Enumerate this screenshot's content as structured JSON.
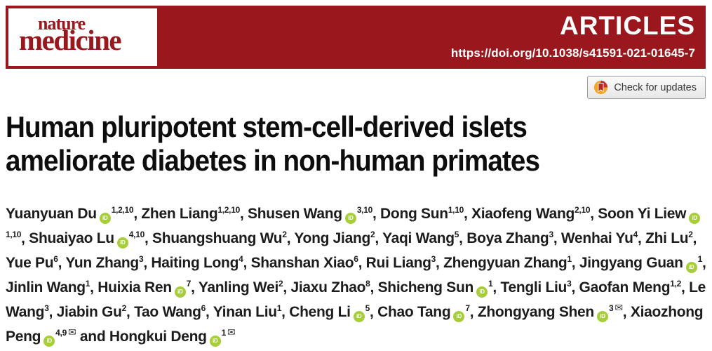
{
  "masthead": {
    "journal_name_line1": "nature",
    "journal_name_line2": "medicine",
    "section_label": "ARTICLES",
    "doi_url": "https://doi.org/10.1038/s41591-021-01645-7"
  },
  "update_badge": {
    "label": "Check for updates"
  },
  "article": {
    "title_line1": "Human pluripotent stem-cell-derived islets",
    "title_line2": "ameliorate diabetes in non-human primates",
    "last_author_conjunction": "and",
    "orcid_icon_text": "iD",
    "email_icon_glyph": "✉",
    "authors": [
      {
        "name": "Yuanyuan Du",
        "orcid": true,
        "sup": "1,2,10",
        "email": false
      },
      {
        "name": "Zhen Liang",
        "orcid": false,
        "sup": "1,2,10",
        "email": false
      },
      {
        "name": "Shusen Wang",
        "orcid": true,
        "sup": "3,10",
        "email": false
      },
      {
        "name": "Dong Sun",
        "orcid": false,
        "sup": "1,10",
        "email": false
      },
      {
        "name": "Xiaofeng Wang",
        "orcid": false,
        "sup": "2,10",
        "email": false
      },
      {
        "name": "Soon Yi Liew",
        "orcid": true,
        "sup": "1,10",
        "email": false
      },
      {
        "name": "Shuaiyao Lu",
        "orcid": true,
        "sup": "4,10",
        "email": false
      },
      {
        "name": "Shuangshuang Wu",
        "orcid": false,
        "sup": "2",
        "email": false
      },
      {
        "name": "Yong Jiang",
        "orcid": false,
        "sup": "2",
        "email": false
      },
      {
        "name": "Yaqi Wang",
        "orcid": false,
        "sup": "5",
        "email": false
      },
      {
        "name": "Boya Zhang",
        "orcid": false,
        "sup": "3",
        "email": false
      },
      {
        "name": "Wenhai Yu",
        "orcid": false,
        "sup": "4",
        "email": false
      },
      {
        "name": "Zhi Lu",
        "orcid": false,
        "sup": "2",
        "email": false
      },
      {
        "name": "Yue Pu",
        "orcid": false,
        "sup": "6",
        "email": false
      },
      {
        "name": "Yun Zhang",
        "orcid": false,
        "sup": "3",
        "email": false
      },
      {
        "name": "Haiting Long",
        "orcid": false,
        "sup": "4",
        "email": false
      },
      {
        "name": "Shanshan Xiao",
        "orcid": false,
        "sup": "6",
        "email": false
      },
      {
        "name": "Rui Liang",
        "orcid": false,
        "sup": "3",
        "email": false
      },
      {
        "name": "Zhengyuan Zhang",
        "orcid": false,
        "sup": "1",
        "email": false
      },
      {
        "name": "Jingyang Guan",
        "orcid": true,
        "sup": "1",
        "email": false
      },
      {
        "name": "Jinlin Wang",
        "orcid": false,
        "sup": "1",
        "email": false
      },
      {
        "name": "Huixia Ren",
        "orcid": true,
        "sup": "7",
        "email": false
      },
      {
        "name": "Yanling Wei",
        "orcid": false,
        "sup": "2",
        "email": false
      },
      {
        "name": "Jiaxu Zhao",
        "orcid": false,
        "sup": "8",
        "email": false
      },
      {
        "name": "Shicheng Sun",
        "orcid": true,
        "sup": "1",
        "email": false
      },
      {
        "name": "Tengli Liu",
        "orcid": false,
        "sup": "3",
        "email": false
      },
      {
        "name": "Gaofan Meng",
        "orcid": false,
        "sup": "1,2",
        "email": false
      },
      {
        "name": "Le Wang",
        "orcid": false,
        "sup": "3",
        "email": false
      },
      {
        "name": "Jiabin Gu",
        "orcid": false,
        "sup": "2",
        "email": false
      },
      {
        "name": "Tao Wang",
        "orcid": false,
        "sup": "6",
        "email": false
      },
      {
        "name": "Yinan Liu",
        "orcid": false,
        "sup": "1",
        "email": false
      },
      {
        "name": "Cheng Li",
        "orcid": true,
        "sup": "5",
        "email": false
      },
      {
        "name": "Chao Tang",
        "orcid": true,
        "sup": "7",
        "email": false
      },
      {
        "name": "Zhongyang Shen",
        "orcid": true,
        "sup": "3",
        "email": true
      },
      {
        "name": "Xiaozhong Peng",
        "orcid": true,
        "sup": "4,9",
        "email": true
      },
      {
        "name": "Hongkui Deng",
        "orcid": true,
        "sup": "1",
        "email": true
      }
    ]
  },
  "colors": {
    "brand_red": "#9a181d",
    "orcid_green": "#a6ce39",
    "title_black": "#0d0d0d",
    "author_text": "#1c1c1c"
  }
}
